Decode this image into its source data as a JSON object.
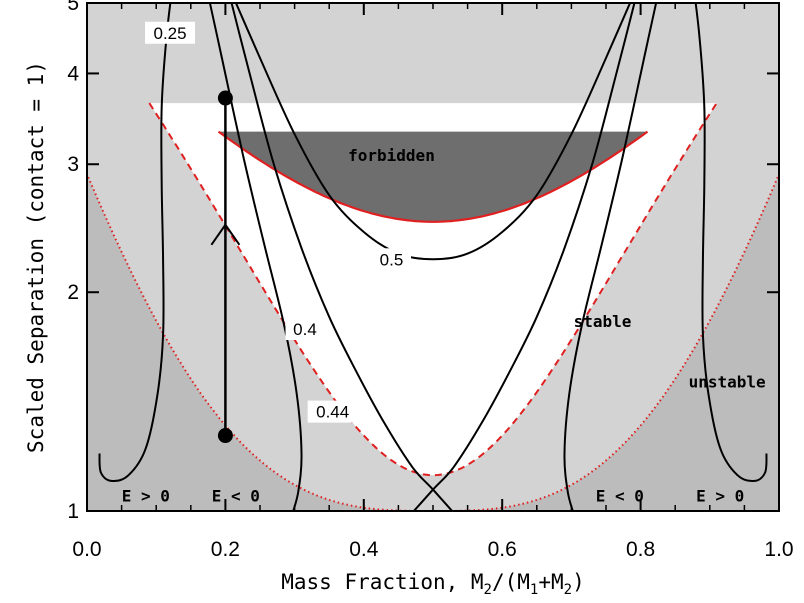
{
  "chart_data": {
    "type": "line",
    "xlabel": "Mass Fraction, M",
    "xlabel_sub1": "2",
    "xlabel_mid": "/(M",
    "xlabel_sub2": "1",
    "xlabel_plus": "+M",
    "xlabel_sub3": "2",
    "xlabel_end": ")",
    "ylabel": "Scaled Separation (contact = 1)",
    "xlim": [
      0.0,
      1.0
    ],
    "ylim": [
      1,
      5
    ],
    "yscale": "log",
    "x_ticks": [
      "0.0",
      "0.2",
      "0.4",
      "0.6",
      "0.8",
      "1.0"
    ],
    "y_ticks": [
      "1",
      "2",
      "3",
      "4",
      "5"
    ],
    "contour_labels": [
      {
        "text": "0.25",
        "x": 0.12,
        "y": 4.55
      },
      {
        "text": "0.4",
        "x": 0.315,
        "y": 1.78
      },
      {
        "text": "0.44",
        "x": 0.355,
        "y": 1.37
      },
      {
        "text": "0.5",
        "x": 0.44,
        "y": 2.22
      }
    ],
    "region_labels": [
      {
        "text": "forbidden",
        "x": 0.44,
        "y": 3.03
      },
      {
        "text": "stable",
        "x": 0.745,
        "y": 1.79
      },
      {
        "text": "unstable",
        "x": 0.925,
        "y": 1.48
      },
      {
        "text": "E > 0",
        "x": 0.085,
        "y": 1.03
      },
      {
        "text": "E < 0",
        "x": 0.215,
        "y": 1.03
      },
      {
        "text": "E < 0",
        "x": 0.77,
        "y": 1.03
      },
      {
        "text": "E > 0",
        "x": 0.915,
        "y": 1.03
      }
    ],
    "evolution_track": {
      "x": 0.2,
      "y_start": 1.27,
      "y_end": 3.7
    },
    "colors": {
      "forbidden_fill": "#6e6e6e",
      "unstable_fill": "#d3d3d3",
      "positive_energy_fill": "#bcbcbc",
      "boundary_red": "#e02020",
      "contour": "#000000"
    }
  }
}
